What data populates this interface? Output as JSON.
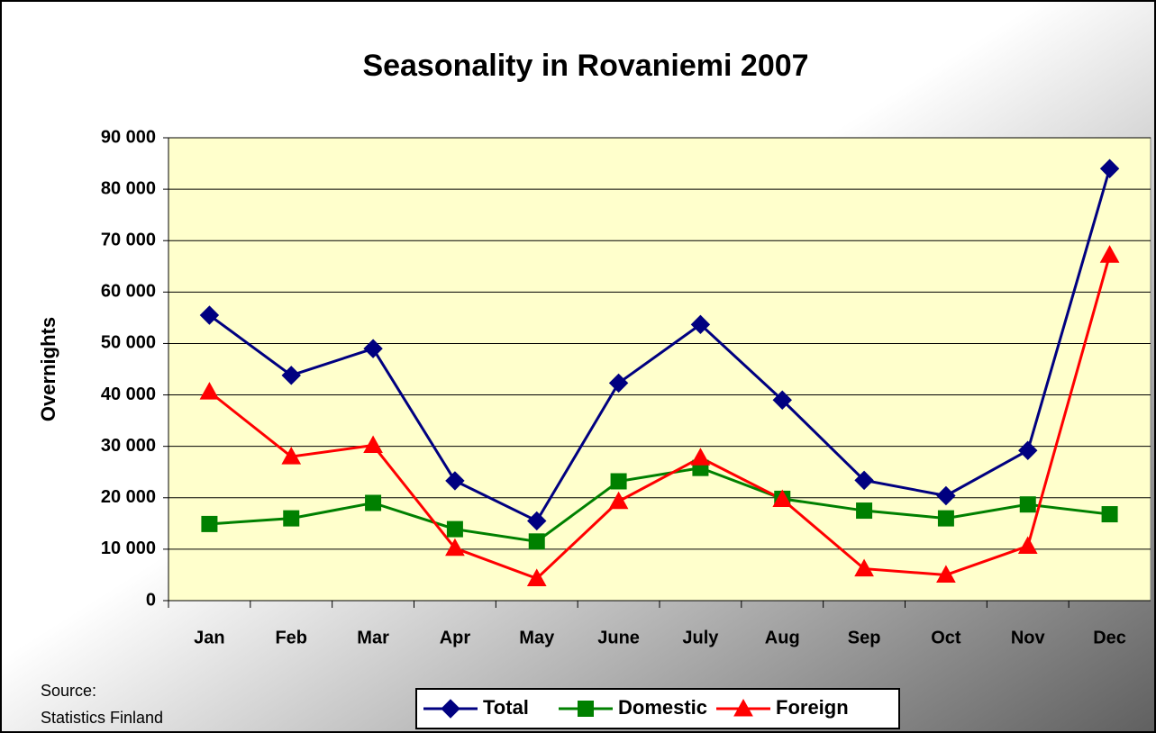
{
  "chart_data": {
    "type": "line",
    "title": "Seasonality in Rovaniemi 2007",
    "y_label": "Overnights",
    "source": [
      "Source:",
      "Statistics Finland"
    ],
    "categories": [
      "Jan",
      "Feb",
      "Mar",
      "Apr",
      "May",
      "June",
      "July",
      "Aug",
      "Sep",
      "Oct",
      "Nov",
      "Dec"
    ],
    "series": [
      {
        "name": "Total",
        "color": "#000080",
        "marker": "diamond",
        "values": [
          55500,
          43800,
          49000,
          23300,
          15500,
          42300,
          53700,
          39000,
          23400,
          20400,
          29200,
          84000
        ]
      },
      {
        "name": "Domestic",
        "color": "#008000",
        "marker": "square",
        "values": [
          14900,
          16000,
          19000,
          13900,
          11500,
          23200,
          25800,
          19800,
          17500,
          16000,
          18700,
          16800
        ]
      },
      {
        "name": "Foreign",
        "color": "#ff0000",
        "marker": "triangle",
        "values": [
          40600,
          28000,
          30200,
          10200,
          4300,
          19300,
          27800,
          19700,
          6200,
          5000,
          10600,
          67200
        ]
      }
    ],
    "ylim": [
      0,
      90000
    ],
    "yticks": [
      {
        "value": 0,
        "label": "0"
      },
      {
        "value": 10000,
        "label": "10 000"
      },
      {
        "value": 20000,
        "label": "20 000"
      },
      {
        "value": 30000,
        "label": "30 000"
      },
      {
        "value": 40000,
        "label": "40 000"
      },
      {
        "value": 50000,
        "label": "50 000"
      },
      {
        "value": 60000,
        "label": "60 000"
      },
      {
        "value": 70000,
        "label": "70 000"
      },
      {
        "value": 80000,
        "label": "80 000"
      },
      {
        "value": 90000,
        "label": "90 000"
      }
    ],
    "grid": true,
    "legend": "bottom"
  }
}
